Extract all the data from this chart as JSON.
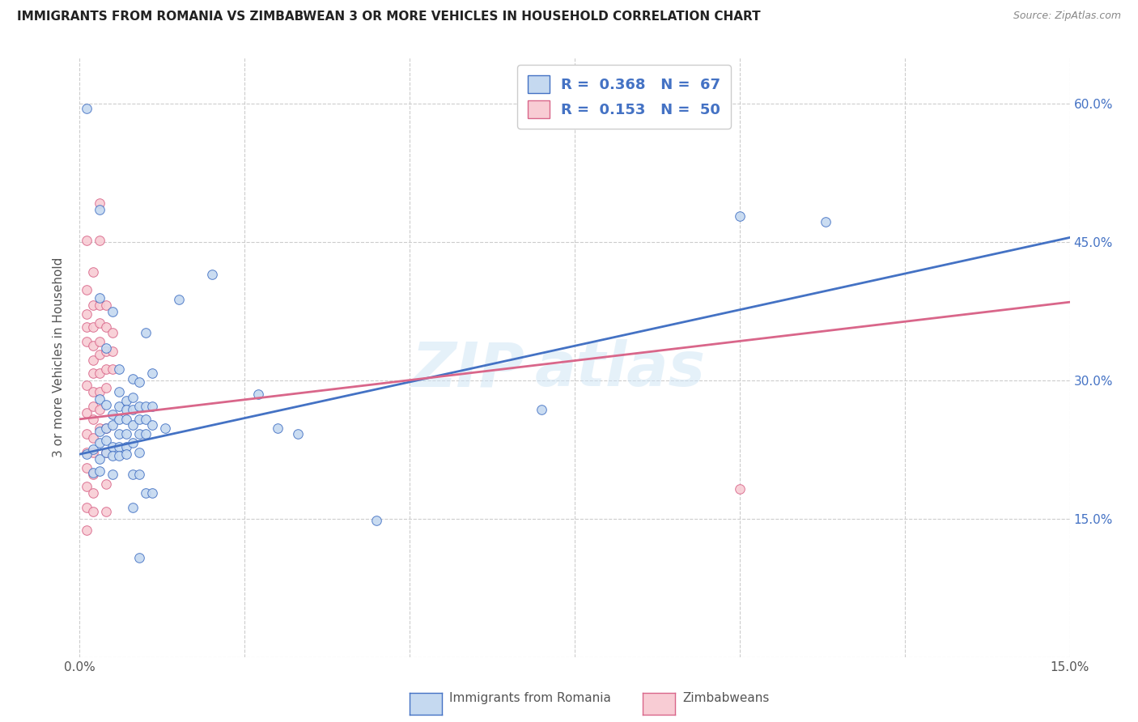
{
  "title": "IMMIGRANTS FROM ROMANIA VS ZIMBABWEAN 3 OR MORE VEHICLES IN HOUSEHOLD CORRELATION CHART",
  "source": "Source: ZipAtlas.com",
  "ylabel": "3 or more Vehicles in Household",
  "xlim": [
    0.0,
    0.15
  ],
  "ylim": [
    0.0,
    0.65
  ],
  "watermark": "ZIPatlas",
  "blue_color": "#c5d9f0",
  "pink_color": "#f8ccd4",
  "blue_line_color": "#4472c4",
  "pink_line_color": "#d9668a",
  "blue_line": [
    0.0,
    0.22,
    0.15,
    0.455
  ],
  "pink_line": [
    0.0,
    0.258,
    0.15,
    0.385
  ],
  "blue_scatter": [
    [
      0.001,
      0.595
    ],
    [
      0.003,
      0.485
    ],
    [
      0.003,
      0.39
    ],
    [
      0.003,
      0.28
    ],
    [
      0.004,
      0.335
    ],
    [
      0.005,
      0.375
    ],
    [
      0.001,
      0.22
    ],
    [
      0.002,
      0.225
    ],
    [
      0.002,
      0.2
    ],
    [
      0.003,
      0.245
    ],
    [
      0.003,
      0.232
    ],
    [
      0.003,
      0.215
    ],
    [
      0.003,
      0.202
    ],
    [
      0.004,
      0.248
    ],
    [
      0.004,
      0.235
    ],
    [
      0.004,
      0.222
    ],
    [
      0.004,
      0.274
    ],
    [
      0.005,
      0.263
    ],
    [
      0.005,
      0.252
    ],
    [
      0.005,
      0.228
    ],
    [
      0.005,
      0.218
    ],
    [
      0.005,
      0.198
    ],
    [
      0.006,
      0.312
    ],
    [
      0.006,
      0.288
    ],
    [
      0.006,
      0.272
    ],
    [
      0.006,
      0.258
    ],
    [
      0.006,
      0.242
    ],
    [
      0.006,
      0.228
    ],
    [
      0.006,
      0.218
    ],
    [
      0.007,
      0.278
    ],
    [
      0.007,
      0.268
    ],
    [
      0.007,
      0.258
    ],
    [
      0.007,
      0.242
    ],
    [
      0.007,
      0.228
    ],
    [
      0.007,
      0.22
    ],
    [
      0.008,
      0.302
    ],
    [
      0.008,
      0.282
    ],
    [
      0.008,
      0.268
    ],
    [
      0.008,
      0.252
    ],
    [
      0.008,
      0.232
    ],
    [
      0.008,
      0.198
    ],
    [
      0.008,
      0.162
    ],
    [
      0.009,
      0.298
    ],
    [
      0.009,
      0.272
    ],
    [
      0.009,
      0.258
    ],
    [
      0.009,
      0.242
    ],
    [
      0.009,
      0.222
    ],
    [
      0.009,
      0.198
    ],
    [
      0.009,
      0.108
    ],
    [
      0.01,
      0.352
    ],
    [
      0.01,
      0.272
    ],
    [
      0.01,
      0.258
    ],
    [
      0.01,
      0.242
    ],
    [
      0.01,
      0.178
    ],
    [
      0.011,
      0.308
    ],
    [
      0.011,
      0.272
    ],
    [
      0.011,
      0.252
    ],
    [
      0.011,
      0.178
    ],
    [
      0.013,
      0.248
    ],
    [
      0.015,
      0.388
    ],
    [
      0.02,
      0.415
    ],
    [
      0.027,
      0.285
    ],
    [
      0.03,
      0.248
    ],
    [
      0.033,
      0.242
    ],
    [
      0.045,
      0.148
    ],
    [
      0.07,
      0.268
    ],
    [
      0.1,
      0.478
    ],
    [
      0.113,
      0.472
    ]
  ],
  "pink_scatter": [
    [
      0.001,
      0.452
    ],
    [
      0.001,
      0.398
    ],
    [
      0.001,
      0.372
    ],
    [
      0.001,
      0.358
    ],
    [
      0.001,
      0.342
    ],
    [
      0.001,
      0.295
    ],
    [
      0.001,
      0.265
    ],
    [
      0.001,
      0.242
    ],
    [
      0.001,
      0.222
    ],
    [
      0.001,
      0.205
    ],
    [
      0.001,
      0.185
    ],
    [
      0.001,
      0.162
    ],
    [
      0.001,
      0.138
    ],
    [
      0.002,
      0.418
    ],
    [
      0.002,
      0.382
    ],
    [
      0.002,
      0.358
    ],
    [
      0.002,
      0.338
    ],
    [
      0.002,
      0.322
    ],
    [
      0.002,
      0.308
    ],
    [
      0.002,
      0.288
    ],
    [
      0.002,
      0.272
    ],
    [
      0.002,
      0.258
    ],
    [
      0.002,
      0.238
    ],
    [
      0.002,
      0.222
    ],
    [
      0.002,
      0.198
    ],
    [
      0.002,
      0.178
    ],
    [
      0.002,
      0.158
    ],
    [
      0.003,
      0.492
    ],
    [
      0.003,
      0.452
    ],
    [
      0.003,
      0.382
    ],
    [
      0.003,
      0.362
    ],
    [
      0.003,
      0.342
    ],
    [
      0.003,
      0.328
    ],
    [
      0.003,
      0.308
    ],
    [
      0.003,
      0.288
    ],
    [
      0.003,
      0.268
    ],
    [
      0.003,
      0.248
    ],
    [
      0.004,
      0.382
    ],
    [
      0.004,
      0.358
    ],
    [
      0.004,
      0.332
    ],
    [
      0.004,
      0.312
    ],
    [
      0.004,
      0.292
    ],
    [
      0.004,
      0.248
    ],
    [
      0.004,
      0.222
    ],
    [
      0.004,
      0.188
    ],
    [
      0.004,
      0.158
    ],
    [
      0.005,
      0.352
    ],
    [
      0.005,
      0.332
    ],
    [
      0.005,
      0.312
    ],
    [
      0.1,
      0.182
    ]
  ]
}
